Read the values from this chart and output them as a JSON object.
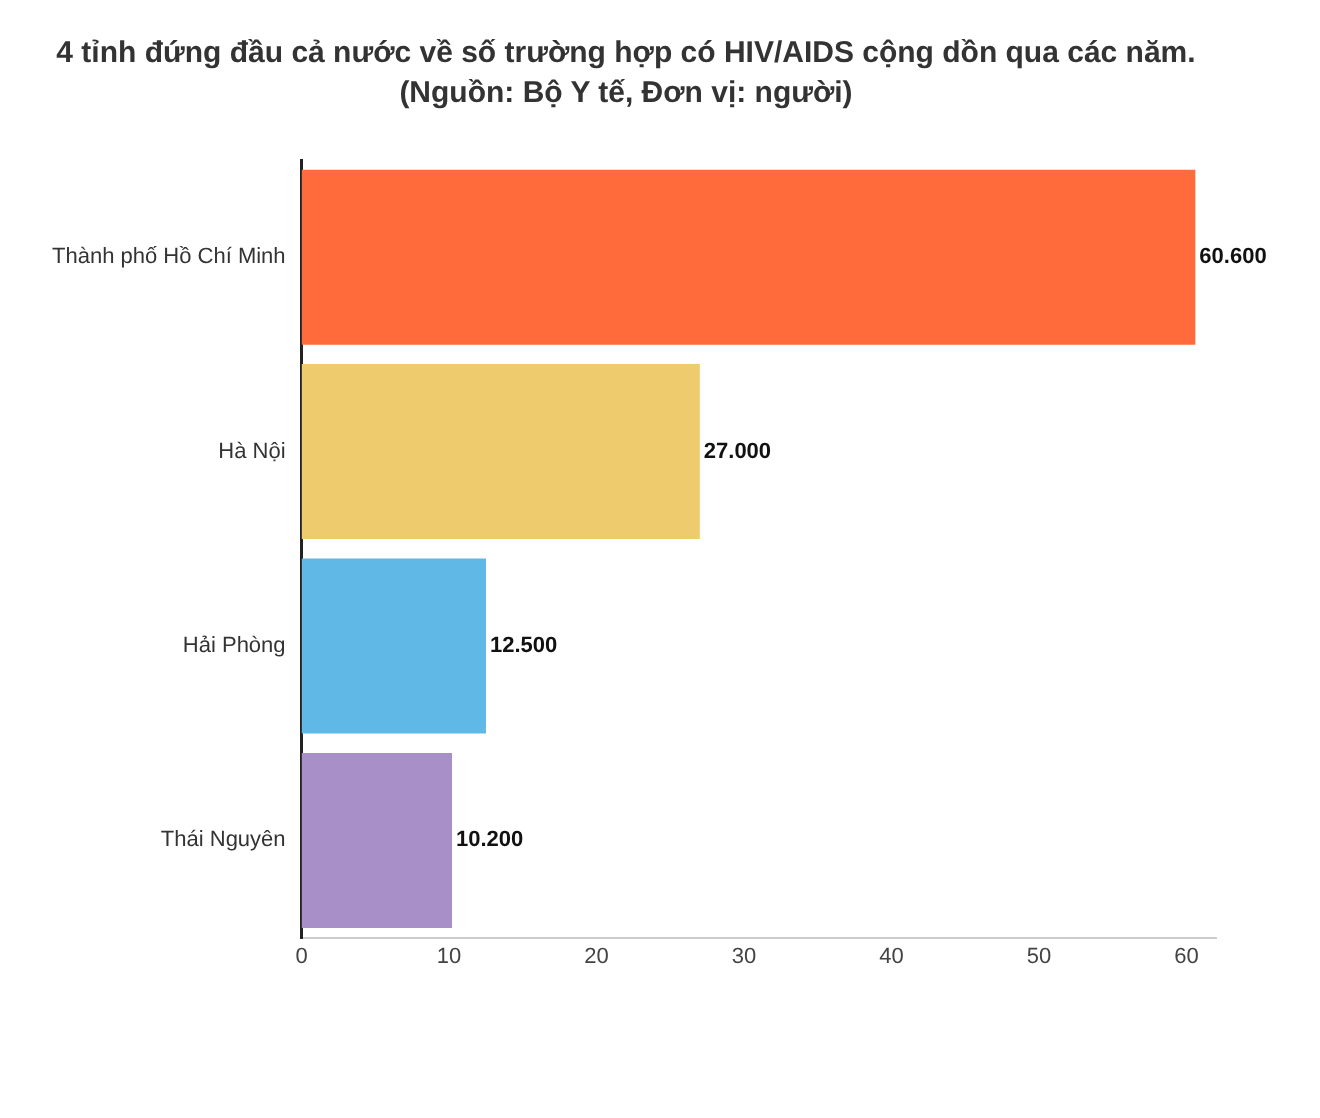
{
  "chart_data": {
    "type": "bar",
    "orientation": "horizontal",
    "title": "4 tỉnh đứng đầu cả nước về số trường hợp có HIV/AIDS cộng dồn qua các năm.",
    "subtitle": "(Nguồn: Bộ Y tế, Đơn vị: người)",
    "categories": [
      "Thành phố Hồ Chí Minh",
      "Hà Nội",
      "Hải Phòng",
      "Thái Nguyên"
    ],
    "values": [
      60.6,
      27,
      12.5,
      10.2
    ],
    "colors": [
      "#ff6b3a",
      "#eecb6c",
      "#5fb8e6",
      "#a98fc8"
    ],
    "value_labels": [
      "60.600",
      "27.000",
      "12.500",
      "10.200"
    ],
    "xlim": [
      0,
      62
    ],
    "xticks": [
      0,
      10,
      20,
      30,
      40,
      50,
      60
    ],
    "grid": false,
    "legend": false
  }
}
